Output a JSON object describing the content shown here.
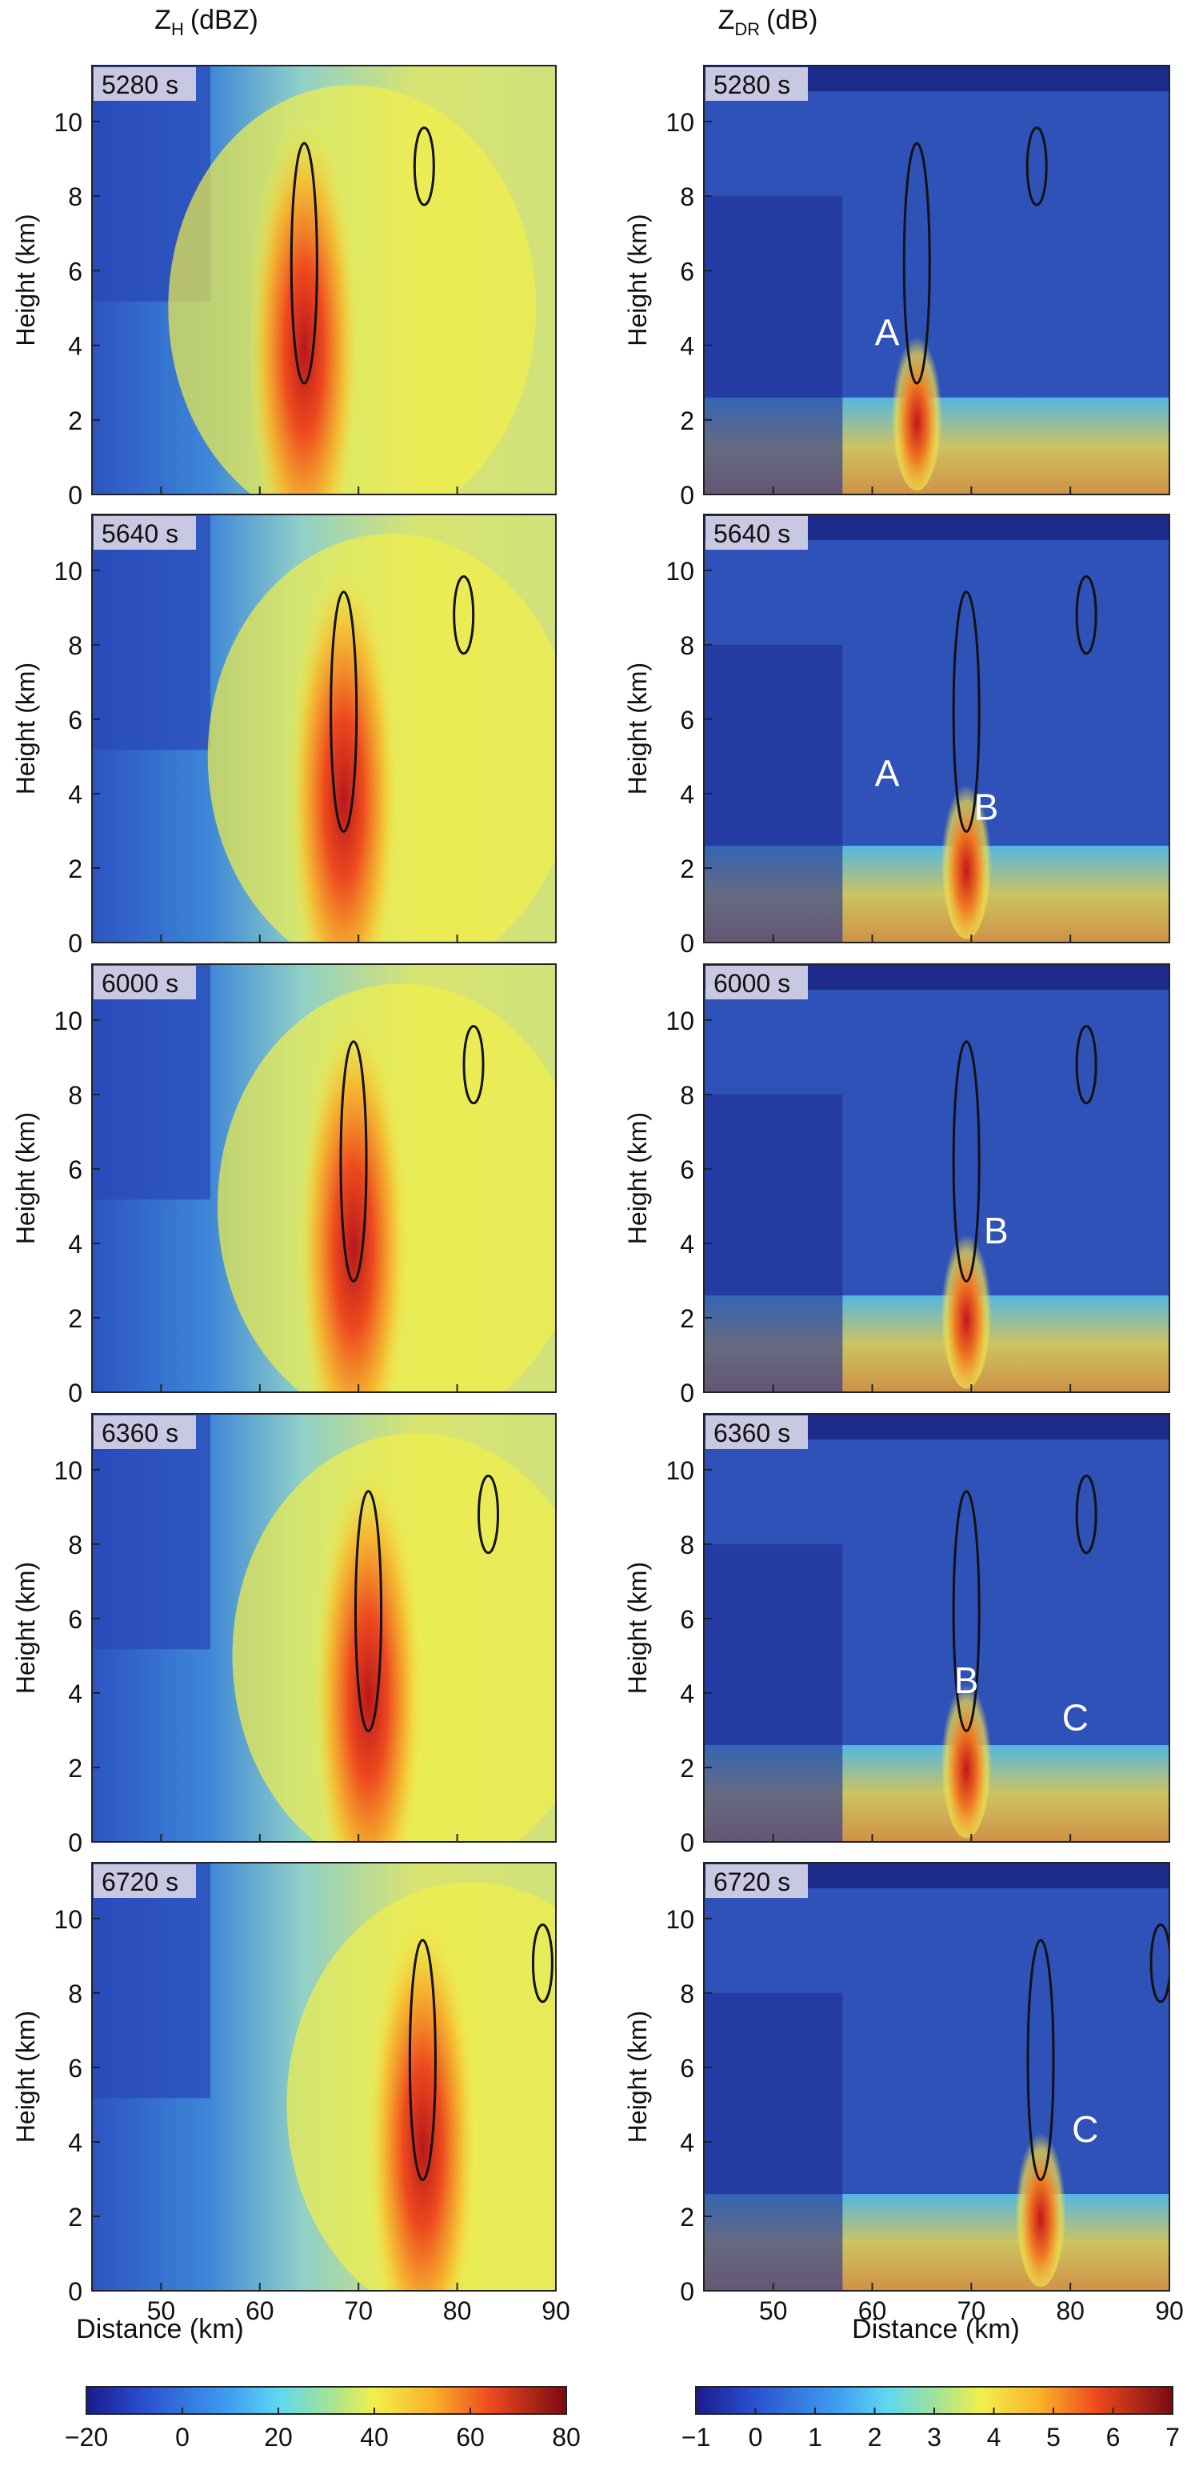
{
  "figure": {
    "left_title_main": "Z",
    "left_title_sub": "H",
    "left_title_unit": "(dBZ)",
    "right_title_main": "Z",
    "right_title_sub": "DR",
    "right_title_unit": "(dB)"
  },
  "chart_data": [
    {
      "type": "heatmap",
      "title": "Z_H (dBZ)",
      "xlabel": "Distance (km)",
      "ylabel": "Height (km)",
      "xlim": [
        43,
        90
      ],
      "ylim": [
        0,
        11.5
      ],
      "xticks": [
        50,
        60,
        70,
        80,
        90
      ],
      "yticks": [
        0,
        2,
        4,
        6,
        8,
        10
      ],
      "colorbar": {
        "range": [
          -20,
          80
        ],
        "ticks": [
          "−20",
          "0",
          "20",
          "40",
          "60",
          "80"
        ]
      },
      "panels": [
        {
          "time_label": "5280 s",
          "core_x": 64.5,
          "peak_value": 70,
          "markers": []
        },
        {
          "time_label": "5640 s",
          "core_x": 68.5,
          "peak_value": 70,
          "markers": []
        },
        {
          "time_label": "6000 s",
          "core_x": 69.5,
          "peak_value": 65,
          "markers": []
        },
        {
          "time_label": "6360 s",
          "core_x": 71,
          "peak_value": 70,
          "markers": []
        },
        {
          "time_label": "6720 s",
          "core_x": 76.5,
          "peak_value": 70,
          "markers": []
        }
      ]
    },
    {
      "type": "heatmap",
      "title": "Z_DR (dB)",
      "xlabel": "Distance (km)",
      "ylabel": "Height (km)",
      "xlim": [
        43,
        90
      ],
      "ylim": [
        0,
        11.5
      ],
      "xticks": [
        50,
        60,
        70,
        80,
        90
      ],
      "yticks": [
        0,
        2,
        4,
        6,
        8,
        10
      ],
      "colorbar": {
        "range": [
          -1,
          7
        ],
        "ticks": [
          "−1",
          "0",
          "1",
          "2",
          "3",
          "4",
          "5",
          "6",
          "7"
        ]
      },
      "panels": [
        {
          "time_label": "5280 s",
          "core_x": 64.5,
          "markers": [
            {
              "text": "A",
              "x": 61.5,
              "y": 4.0
            }
          ]
        },
        {
          "time_label": "5640 s",
          "core_x": 69.5,
          "markers": [
            {
              "text": "A",
              "x": 61.5,
              "y": 4.2
            },
            {
              "text": "B",
              "x": 71.5,
              "y": 3.3
            }
          ]
        },
        {
          "time_label": "6000 s",
          "core_x": 69.5,
          "markers": [
            {
              "text": "B",
              "x": 72.5,
              "y": 4.0
            }
          ]
        },
        {
          "time_label": "6360 s",
          "core_x": 69.5,
          "markers": [
            {
              "text": "B",
              "x": 69.5,
              "y": 4.0
            },
            {
              "text": "C",
              "x": 80.5,
              "y": 3.0
            }
          ]
        },
        {
          "time_label": "6720 s",
          "core_x": 77,
          "markers": [
            {
              "text": "C",
              "x": 81.5,
              "y": 4.0
            }
          ]
        }
      ]
    }
  ]
}
